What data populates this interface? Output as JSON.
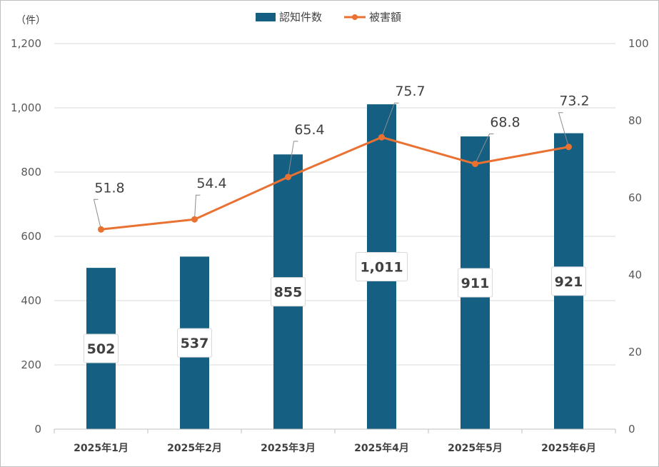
{
  "chart_data": {
    "type": "bar",
    "categories": [
      "2025年1月",
      "2025年2月",
      "2025年3月",
      "2025年4月",
      "2025年5月",
      "2025年6月"
    ],
    "series": [
      {
        "name": "認知件数",
        "type": "bar",
        "axis": "left",
        "color": "#156082",
        "values": [
          502,
          537,
          855,
          1011,
          911,
          921
        ],
        "labels": [
          "502",
          "537",
          "855",
          "1,011",
          "911",
          "921"
        ]
      },
      {
        "name": "被害額",
        "type": "line",
        "axis": "right",
        "color": "#e97132",
        "values": [
          51.8,
          54.4,
          65.4,
          75.7,
          68.8,
          73.2
        ],
        "labels": [
          "51.8",
          "54.4",
          "65.4",
          "75.7",
          "68.8",
          "73.2"
        ]
      }
    ],
    "y_left": {
      "unit": "（件）",
      "ylim": [
        0,
        1200
      ],
      "ticks": [
        0,
        200,
        400,
        600,
        800,
        1000,
        1200
      ],
      "tick_labels": [
        "0",
        "200",
        "400",
        "600",
        "800",
        "1,000",
        "1,200"
      ]
    },
    "y_right": {
      "ylim": [
        0,
        100
      ],
      "ticks": [
        0,
        20,
        40,
        60,
        80,
        100
      ],
      "tick_labels": [
        "0",
        "20",
        "40",
        "60",
        "80",
        "100"
      ]
    },
    "grid": true,
    "legend_position": "top"
  }
}
